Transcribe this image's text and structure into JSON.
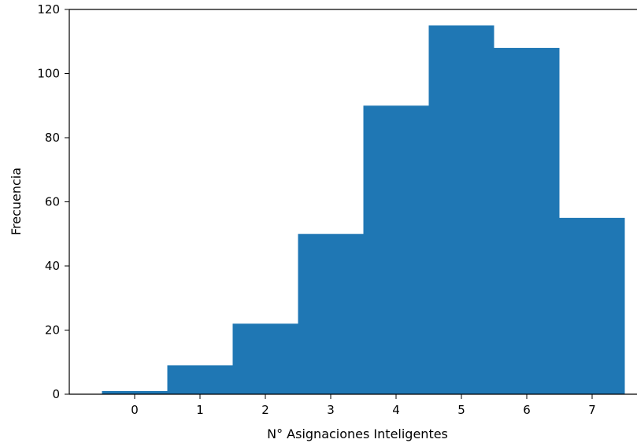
{
  "chart_data": {
    "type": "bar",
    "categories": [
      "0",
      "1",
      "2",
      "3",
      "4",
      "5",
      "6",
      "7"
    ],
    "values": [
      1,
      9,
      22,
      50,
      90,
      115,
      108,
      55
    ],
    "title": "",
    "xlabel": "N° Asignaciones Inteligentes",
    "ylabel": "Frecuencia",
    "ylim": [
      0,
      120
    ],
    "xlim": [
      -1,
      8
    ],
    "yticks": [
      "0",
      "20",
      "40",
      "60",
      "80",
      "100",
      "120"
    ],
    "bar_color": "#1f77b4",
    "grid": false,
    "legend": "none"
  }
}
